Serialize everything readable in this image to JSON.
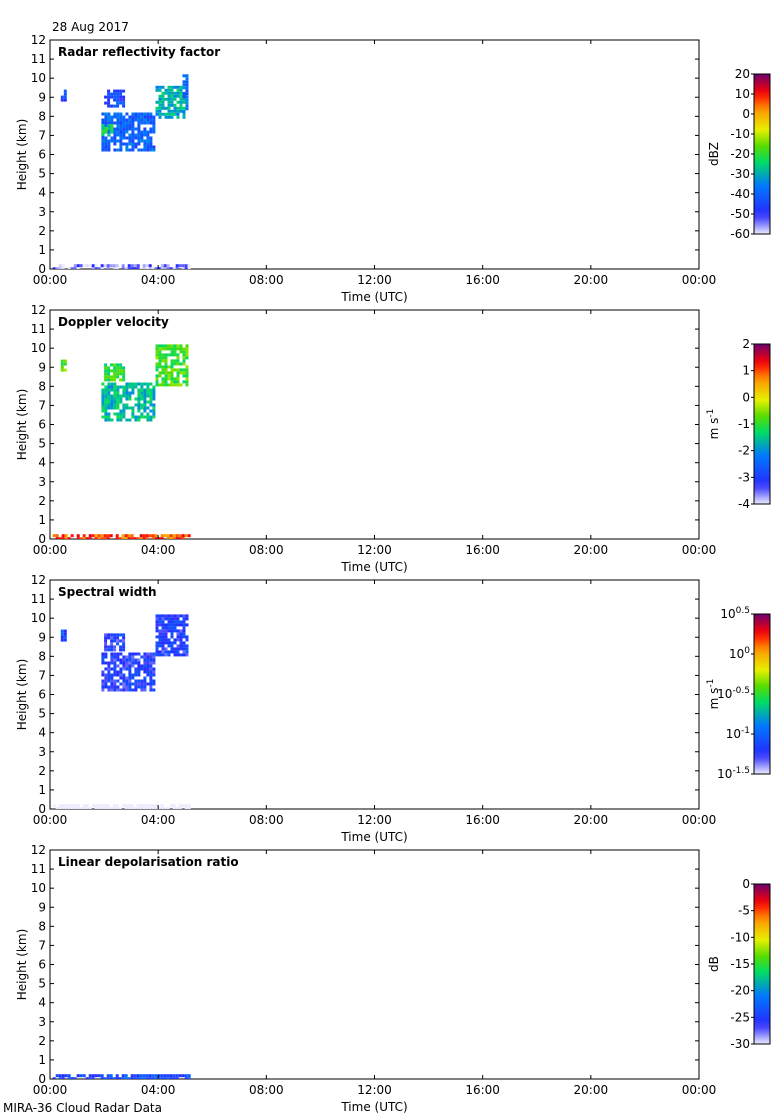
{
  "date": "28 Aug 2017",
  "footer": "MIRA-36 Cloud Radar Data",
  "chart_data": [
    {
      "type": "heatmap",
      "title": "Radar reflectivity factor",
      "xlabel": "Time (UTC)",
      "ylabel": "Height (km)",
      "xlim": [
        0,
        24
      ],
      "ylim": [
        0,
        12
      ],
      "x_ticks": [
        "00:00",
        "04:00",
        "08:00",
        "12:00",
        "16:00",
        "20:00",
        "00:00"
      ],
      "y_ticks": [
        "0",
        "1",
        "2",
        "3",
        "4",
        "5",
        "6",
        "7",
        "8",
        "9",
        "10",
        "11",
        "12"
      ],
      "colorbar": {
        "label": "dBZ",
        "ticks": [
          "20",
          "10",
          "0",
          "-10",
          "-20",
          "-30",
          "-40",
          "-50",
          "-60"
        ],
        "range": [
          -60,
          20
        ]
      },
      "grid": false,
      "echo_regions": [
        {
          "x": [
            1.9,
            3.8
          ],
          "y": [
            6.3,
            8.2
          ],
          "value": -40
        },
        {
          "x": [
            1.9,
            2.3
          ],
          "y": [
            7.1,
            7.6
          ],
          "value": -25
        },
        {
          "x": [
            2.0,
            2.7
          ],
          "y": [
            8.5,
            9.4
          ],
          "value": -45
        },
        {
          "x": [
            3.9,
            4.9
          ],
          "y": [
            8.0,
            9.6
          ],
          "value": -30
        },
        {
          "x": [
            4.9,
            5.1
          ],
          "y": [
            8.2,
            10.2
          ],
          "value": -38
        },
        {
          "x": [
            0.4,
            0.6
          ],
          "y": [
            8.8,
            9.4
          ],
          "value": -45
        },
        {
          "x": [
            0.1,
            5.1
          ],
          "y": [
            0.05,
            0.25
          ],
          "value": -55
        }
      ]
    },
    {
      "type": "heatmap",
      "title": "Doppler velocity",
      "xlabel": "Time (UTC)",
      "ylabel": "Height (km)",
      "xlim": [
        0,
        24
      ],
      "ylim": [
        0,
        12
      ],
      "x_ticks": [
        "00:00",
        "04:00",
        "08:00",
        "12:00",
        "16:00",
        "20:00",
        "00:00"
      ],
      "y_ticks": [
        "0",
        "1",
        "2",
        "3",
        "4",
        "5",
        "6",
        "7",
        "8",
        "9",
        "10",
        "11",
        "12"
      ],
      "colorbar": {
        "label": "m s-1",
        "ticks": [
          "2",
          "1",
          "0",
          "-1",
          "-2",
          "-3",
          "-4"
        ],
        "range": [
          -4,
          2
        ]
      },
      "grid": false,
      "echo_regions": [
        {
          "x": [
            1.9,
            3.8
          ],
          "y": [
            6.3,
            8.2
          ],
          "value": -1.6
        },
        {
          "x": [
            2.0,
            2.7
          ],
          "y": [
            8.4,
            9.2
          ],
          "value": -1.0
        },
        {
          "x": [
            3.9,
            5.1
          ],
          "y": [
            8.0,
            10.2
          ],
          "value": -0.9
        },
        {
          "x": [
            0.4,
            0.6
          ],
          "y": [
            8.8,
            9.4
          ],
          "value": -0.8
        },
        {
          "x": [
            0.1,
            5.1
          ],
          "y": [
            0.05,
            0.25
          ],
          "value": 1.0
        }
      ]
    },
    {
      "type": "heatmap",
      "title": "Spectral width",
      "xlabel": "Time (UTC)",
      "ylabel": "Height (km)",
      "xlim": [
        0,
        24
      ],
      "ylim": [
        0,
        12
      ],
      "x_ticks": [
        "00:00",
        "04:00",
        "08:00",
        "12:00",
        "16:00",
        "20:00",
        "00:00"
      ],
      "y_ticks": [
        "0",
        "1",
        "2",
        "3",
        "4",
        "5",
        "6",
        "7",
        "8",
        "9",
        "10",
        "11",
        "12"
      ],
      "colorbar": {
        "label": "m s-1",
        "ticks": [
          "10^0.5",
          "10^0",
          "10^-0.5",
          "10^-1",
          "10^-1.5"
        ],
        "log10_range": [
          -1.5,
          0.5
        ]
      },
      "grid": false,
      "echo_regions": [
        {
          "x": [
            1.9,
            3.8
          ],
          "y": [
            6.3,
            8.2
          ],
          "value": -1.2
        },
        {
          "x": [
            2.0,
            2.7
          ],
          "y": [
            8.4,
            9.2
          ],
          "value": -1.2
        },
        {
          "x": [
            3.9,
            5.1
          ],
          "y": [
            8.0,
            10.2
          ],
          "value": -1.2
        },
        {
          "x": [
            0.4,
            0.6
          ],
          "y": [
            8.8,
            9.4
          ],
          "value": -1.1
        },
        {
          "x": [
            0.1,
            5.1
          ],
          "y": [
            0.05,
            0.25
          ],
          "value": -1.7
        }
      ]
    },
    {
      "type": "heatmap",
      "title": "Linear depolarisation ratio",
      "xlabel": "Time (UTC)",
      "ylabel": "Height (km)",
      "xlim": [
        0,
        24
      ],
      "ylim": [
        0,
        12
      ],
      "x_ticks": [
        "00:00",
        "04:00",
        "08:00",
        "12:00",
        "16:00",
        "20:00",
        "00:00"
      ],
      "y_ticks": [
        "0",
        "1",
        "2",
        "3",
        "4",
        "5",
        "6",
        "7",
        "8",
        "9",
        "10",
        "11",
        "12"
      ],
      "colorbar": {
        "label": "dB",
        "ticks": [
          "0",
          "-5",
          "-10",
          "-15",
          "-20",
          "-25",
          "-30"
        ],
        "range": [
          -30,
          0
        ]
      },
      "grid": false,
      "echo_regions": [
        {
          "x": [
            0.1,
            5.1
          ],
          "y": [
            0.05,
            0.25
          ],
          "value": -24
        }
      ]
    }
  ]
}
